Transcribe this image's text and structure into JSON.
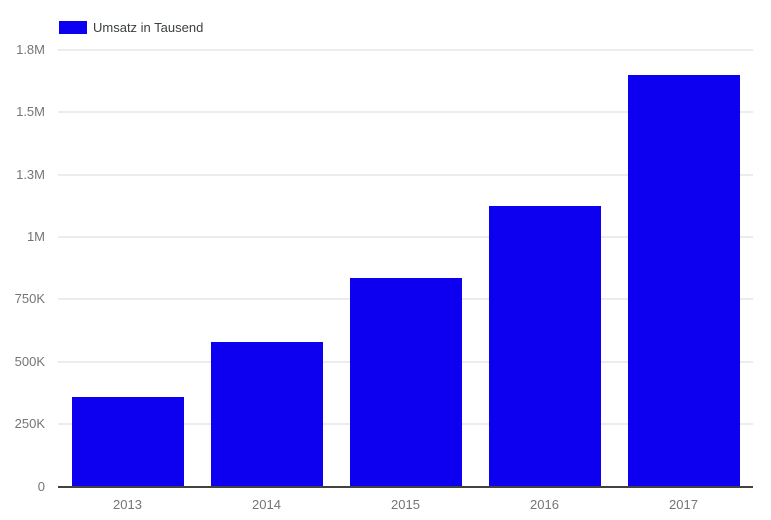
{
  "legend": {
    "label": "Umsatz in Tausend"
  },
  "colors": {
    "bar": "#0d00f0",
    "gridline": "#ececec",
    "baseline": "#424242",
    "tick_label": "#757575",
    "legend_text": "#3c4043",
    "background": "#ffffff"
  },
  "chart_data": {
    "type": "bar",
    "title": "",
    "xlabel": "",
    "ylabel": "",
    "categories": [
      "2013",
      "2014",
      "2015",
      "2016",
      "2017"
    ],
    "series": [
      {
        "name": "Umsatz in Tausend",
        "values": [
          360000,
          580000,
          835000,
          1125000,
          1650000
        ]
      }
    ],
    "ylim": [
      0,
      1750000
    ],
    "yticks": [
      {
        "value": 0,
        "label": "0"
      },
      {
        "value": 250000,
        "label": "250K"
      },
      {
        "value": 500000,
        "label": "500K"
      },
      {
        "value": 750000,
        "label": "750K"
      },
      {
        "value": 1000000,
        "label": "1M"
      },
      {
        "value": 1250000,
        "label": "1.3M"
      },
      {
        "value": 1500000,
        "label": "1.5M"
      },
      {
        "value": 1750000,
        "label": "1.8M"
      }
    ],
    "grid": true,
    "legend_position": "top-left",
    "bar_color": "#0d00f0"
  }
}
